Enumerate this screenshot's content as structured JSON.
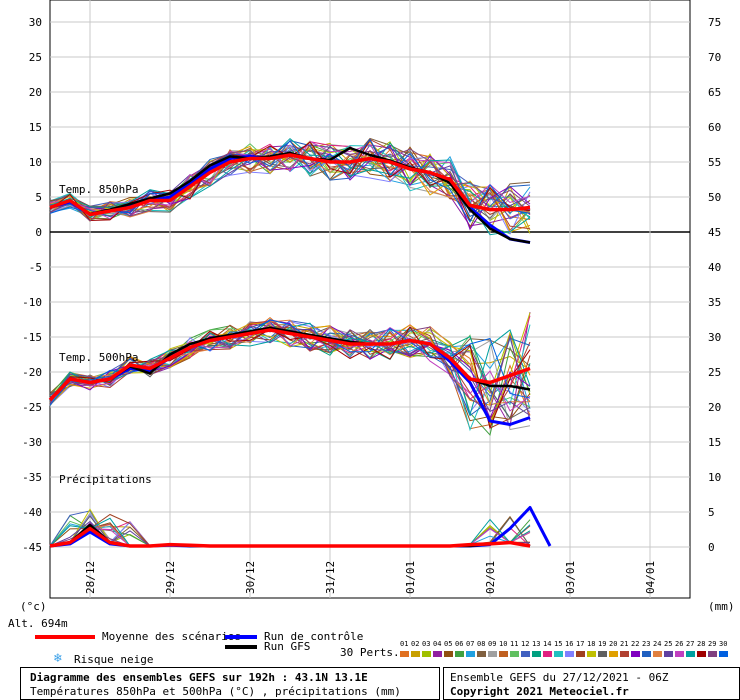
{
  "chart_data": {
    "type": "line",
    "title": "Diagramme des ensembles GEFS sur 192h : 43.1N 13.1E",
    "subtitle": "Températures 850hPa et 500hPa (°C) , précipitations (mm)",
    "left_axis": {
      "label": "(°c)",
      "ticks": [
        "30",
        "25",
        "20",
        "15",
        "10",
        "5",
        "0",
        "-5",
        "-10",
        "-15",
        "-20",
        "-25",
        "-30",
        "-35",
        "-40",
        "-45"
      ],
      "range": [
        -50,
        30
      ]
    },
    "right_axis": {
      "label": "(mm)",
      "ticks": [
        "75",
        "70",
        "65",
        "60",
        "55",
        "50",
        "45",
        "40",
        "35",
        "30",
        "25",
        "20",
        "15",
        "10",
        "5",
        "0"
      ],
      "range": [
        -5,
        75
      ]
    },
    "x_labels": [
      "28/12",
      "29/12",
      "30/12",
      "31/12",
      "01/01",
      "02/01",
      "03/01",
      "04/01"
    ],
    "altitude": "Alt. 694m",
    "panels": {
      "t850": {
        "label": "Temp. 850hPa"
      },
      "t500": {
        "label": "Temp. 500hPa"
      },
      "precip": {
        "label": "Précipitations"
      }
    },
    "x_hours": [
      0,
      6,
      12,
      18,
      24,
      30,
      36,
      42,
      48,
      54,
      60,
      66,
      72,
      78,
      84,
      90,
      96,
      102,
      108,
      114,
      120,
      126,
      132,
      138,
      144,
      150,
      156,
      162,
      168,
      174,
      180,
      186,
      192
    ],
    "series": [
      {
        "name": "Moyenne des scénarios",
        "panel": "t850",
        "values": [
          3.5,
          4.5,
          2.5,
          3,
          3.5,
          4.5,
          4.5,
          6.5,
          8.5,
          10,
          10.5,
          10.5,
          11,
          10.5,
          10,
          10,
          10.5,
          10,
          9,
          8.5,
          7.5,
          3.8,
          3.2,
          3.2,
          3.5,
          null,
          null,
          null,
          null,
          null,
          null,
          null,
          null
        ]
      },
      {
        "name": "Run de contrôle",
        "panel": "t850",
        "values": [
          3.5,
          4.3,
          2.5,
          3,
          3.8,
          4.5,
          5,
          7,
          9,
          10.5,
          10.8,
          10.5,
          11,
          10.5,
          10,
          10,
          10.5,
          10,
          9,
          8.5,
          7.5,
          3.5,
          1,
          -1,
          -1.5,
          null,
          null,
          null,
          null,
          null,
          null,
          null,
          null
        ]
      },
      {
        "name": "Run GFS",
        "panel": "t850",
        "values": [
          3.5,
          4.5,
          2.6,
          3.2,
          4,
          4.8,
          5.5,
          7.3,
          9.5,
          10.8,
          10.5,
          10.8,
          11.3,
          10.5,
          10.3,
          12,
          11,
          10.2,
          9.2,
          8.5,
          7,
          3.2,
          0.5,
          -1,
          -1.5,
          null,
          null,
          null,
          null,
          null,
          null,
          null,
          null
        ]
      },
      {
        "name": "Moyenne des scénarios",
        "panel": "t500",
        "values": [
          -24,
          -21,
          -21.5,
          -21,
          -19,
          -19.5,
          -18,
          -16.5,
          -15.5,
          -15,
          -14.5,
          -14,
          -14.5,
          -15,
          -15.5,
          -16,
          -16,
          -16,
          -15.5,
          -16,
          -18,
          -21,
          -21.5,
          -20.5,
          -19.5,
          null,
          null,
          null,
          null,
          null,
          null,
          null,
          null
        ]
      },
      {
        "name": "Run de contrôle",
        "panel": "t500",
        "values": [
          -24,
          -21,
          -21.5,
          -21,
          -19.5,
          -19.8,
          -18,
          -16.5,
          -15.5,
          -15,
          -14.5,
          -14,
          -14.5,
          -15,
          -15.5,
          -16,
          -16,
          -16,
          -15.5,
          -16,
          -18.5,
          -21.5,
          -27,
          -27.5,
          -26.5,
          null,
          null,
          null,
          null,
          null,
          null,
          null,
          null
        ]
      },
      {
        "name": "Run GFS",
        "panel": "t500",
        "values": [
          -24,
          -21,
          -21.5,
          -21,
          -19.2,
          -20.2,
          -17.5,
          -16,
          -15.2,
          -14.7,
          -14.2,
          -13.7,
          -14.2,
          -14.7,
          -15.2,
          -15.7,
          -16,
          -16,
          -15.5,
          -16,
          -18,
          -21,
          -22,
          -22,
          -22.5,
          null,
          null,
          null,
          null,
          null,
          null,
          null,
          null
        ]
      },
      {
        "name": "Moyenne des scénarios",
        "panel": "precip",
        "values": [
          0,
          0.5,
          2.5,
          0.5,
          0,
          0,
          0.2,
          0.1,
          0,
          0,
          0,
          0,
          0,
          0,
          0,
          0,
          0,
          0,
          0,
          0,
          0,
          0.2,
          0.3,
          0.5,
          0,
          null,
          null,
          null,
          null,
          null,
          null,
          null,
          null
        ]
      },
      {
        "name": "Run de contrôle",
        "panel": "precip",
        "values": [
          0,
          0.3,
          2,
          0.3,
          0,
          0,
          0.1,
          0,
          0,
          0,
          0,
          0,
          0,
          0,
          0,
          0,
          0,
          0,
          0,
          0,
          0,
          0,
          0.2,
          2.5,
          5.5,
          0,
          null,
          null,
          null,
          null,
          null,
          null,
          null
        ]
      },
      {
        "name": "Run GFS",
        "panel": "precip",
        "values": [
          0,
          0.5,
          3,
          0.5,
          0,
          0,
          0.2,
          0,
          0,
          0,
          0,
          0,
          0,
          0,
          0,
          0,
          0,
          0,
          0,
          0,
          0,
          0,
          0.3,
          0.5,
          0,
          null,
          null,
          null,
          null,
          null,
          null,
          null,
          null
        ]
      }
    ]
  },
  "legend": {
    "moyenne": "Moyenne des scénarios",
    "controle": "Run de contrôle",
    "gfs": "Run GFS",
    "neige": "Risque neige",
    "perts": "30 Perts.",
    "pert_numbers": [
      "01",
      "02",
      "03",
      "04",
      "05",
      "06",
      "07",
      "08",
      "09",
      "10",
      "11",
      "12",
      "13",
      "14",
      "15",
      "16",
      "17",
      "18",
      "19",
      "20",
      "21",
      "22",
      "23",
      "24",
      "25",
      "26",
      "27",
      "28",
      "29",
      "30"
    ],
    "pert_colors": [
      "#e07020",
      "#c8a000",
      "#a0c000",
      "#9020a0",
      "#905010",
      "#40a040",
      "#20a0e0",
      "#806040",
      "#a0a0a0",
      "#c06020",
      "#60c060",
      "#4060c0",
      "#00a080",
      "#e02080",
      "#20c0c0",
      "#8080ff",
      "#a04020",
      "#c0c000",
      "#606060",
      "#e0a000",
      "#b04030",
      "#8000c0",
      "#2060c0",
      "#e08040",
      "#6040a0",
      "#c040c0",
      "#00a0a0",
      "#a00000",
      "#804080",
      "#0060e0"
    ],
    "colors": {
      "moyenne": "#ff0000",
      "controle": "#0000ff",
      "gfs": "#000000",
      "neige": "#3aa0e8"
    }
  },
  "footer": {
    "title": "Diagramme des ensembles GEFS sur 192h : 43.1N 13.1E",
    "subtitle": "Températures 850hPa et 500hPa (°C) , précipitations (mm)",
    "run": "Ensemble GEFS du 27/12/2021 - 06Z",
    "copyright": "Copyright 2021 Meteociel.fr"
  }
}
